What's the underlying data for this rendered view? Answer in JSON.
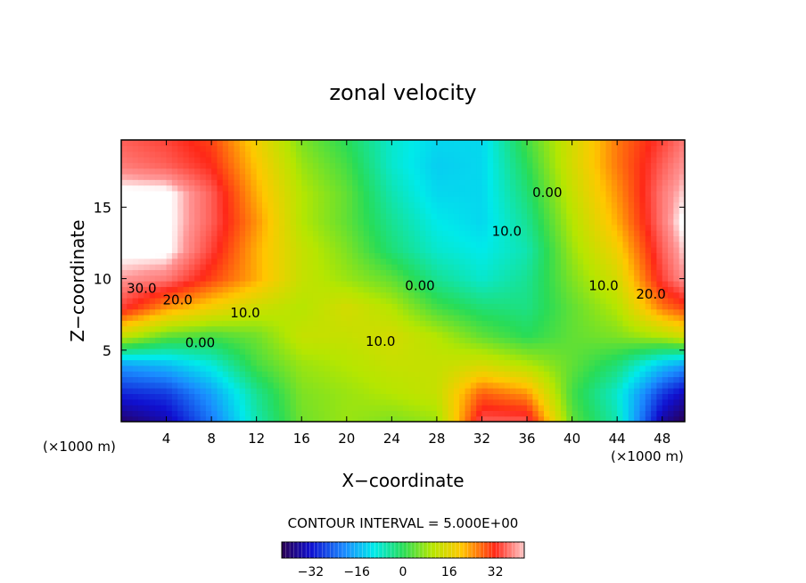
{
  "chart_data": {
    "type": "heatmap",
    "title": "zonal velocity",
    "xlabel": "X−coordinate",
    "ylabel": "Z−coordinate",
    "x_unit_left": "(×1000 m)",
    "x_unit_right": "(×1000 m)",
    "xlim": [
      0,
      50
    ],
    "ylim": [
      0,
      19.7
    ],
    "x_ticks": [
      4,
      8,
      12,
      16,
      20,
      24,
      28,
      32,
      36,
      40,
      44,
      48
    ],
    "y_ticks": [
      5,
      10,
      15
    ],
    "contour_interval_text": "CONTOUR INTERVAL = 5.000E+00",
    "colorbar": {
      "range": [
        -42,
        42
      ],
      "ticks": [
        -32,
        -16,
        0,
        16,
        32
      ]
    },
    "grid_x": [
      0,
      4,
      8,
      12,
      16,
      20,
      24,
      28,
      32,
      36,
      40,
      44,
      48,
      50
    ],
    "grid_z": [
      0,
      2,
      4,
      6,
      8,
      10,
      12,
      14,
      16,
      18,
      19.7
    ],
    "values": [
      [
        -40,
        -35,
        -22,
        -6,
        5,
        8,
        6,
        8,
        36,
        36,
        4,
        -6,
        -36,
        -42
      ],
      [
        -30,
        -28,
        -18,
        -4,
        6,
        8,
        10,
        12,
        28,
        24,
        2,
        -8,
        -28,
        -34
      ],
      [
        -18,
        -15,
        -9,
        2,
        8,
        10,
        12,
        12,
        14,
        10,
        4,
        -2,
        -14,
        -18
      ],
      [
        12,
        4,
        2,
        5,
        12,
        12,
        14,
        10,
        4,
        0,
        4,
        6,
        10,
        14
      ],
      [
        34,
        24,
        18,
        13,
        10,
        14,
        10,
        2,
        -2,
        -3,
        4,
        10,
        26,
        30
      ],
      [
        40,
        38,
        30,
        22,
        12,
        8,
        4,
        -4,
        -8,
        -4,
        6,
        14,
        34,
        40
      ],
      [
        44,
        44,
        34,
        22,
        12,
        6,
        -2,
        -8,
        -10,
        -6,
        8,
        18,
        36,
        42
      ],
      [
        44,
        44,
        36,
        24,
        10,
        4,
        -4,
        -10,
        -12,
        -4,
        10,
        22,
        38,
        44
      ],
      [
        44,
        44,
        36,
        22,
        10,
        4,
        -6,
        -12,
        -12,
        -2,
        12,
        24,
        38,
        42
      ],
      [
        38,
        36,
        32,
        20,
        8,
        2,
        -8,
        -13,
        -12,
        0,
        14,
        26,
        36,
        40
      ],
      [
        36,
        34,
        30,
        18,
        6,
        0,
        -8,
        -12,
        -12,
        2,
        14,
        26,
        34,
        38
      ]
    ],
    "contour_labels": [
      {
        "text": "30.0",
        "x": 1.8,
        "z": 9.0
      },
      {
        "text": "20.0",
        "x": 5.0,
        "z": 8.2
      },
      {
        "text": "10.0",
        "x": 11.0,
        "z": 7.3
      },
      {
        "text": "0.00",
        "x": 7.0,
        "z": 5.2
      },
      {
        "text": "10.0",
        "x": 23.0,
        "z": 5.3
      },
      {
        "text": "0.00",
        "x": 26.5,
        "z": 9.2
      },
      {
        "text": "10.0",
        "x": 34.2,
        "z": 13.0
      },
      {
        "text": "0.00",
        "x": 37.8,
        "z": 15.7
      },
      {
        "text": "10.0",
        "x": 42.8,
        "z": 9.2
      },
      {
        "text": "20.0",
        "x": 47.0,
        "z": 8.6
      }
    ]
  }
}
